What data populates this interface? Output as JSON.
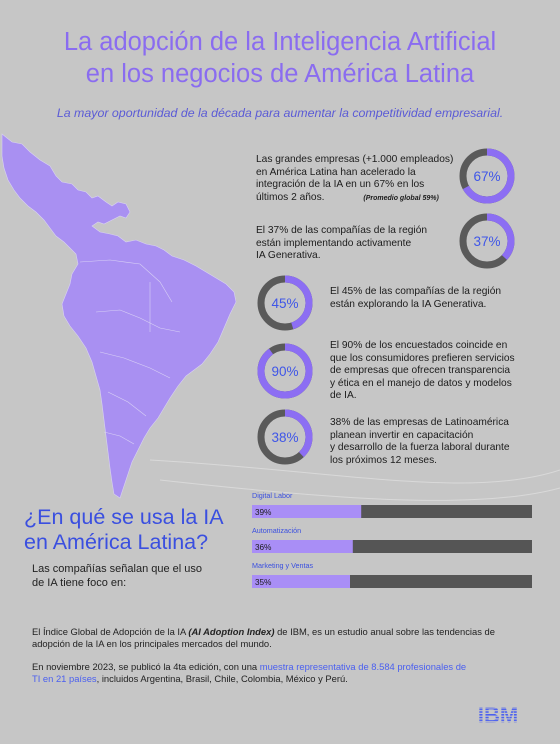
{
  "header": {
    "title_line1": "La adopción de la Inteligencia Artificial",
    "title_line2": "en los negocios de América Latina",
    "subtitle": "La mayor oportunidad de la década para aumentar la competitividad empresarial."
  },
  "stats": [
    {
      "value": 67,
      "label": "67%",
      "lines": [
        "Las grandes empresas (+1.000 empleados)",
        "en América Latina han acelerado la",
        "integración de la IA en un 67% en los"
      ],
      "last_line": "últimos 2 años.",
      "note": "(Promedio global 59%)"
    },
    {
      "value": 37,
      "label": "37%",
      "lines": [
        "El 37% de las compañías de la región",
        "están implementando activamente",
        "IA Generativa."
      ]
    },
    {
      "value": 45,
      "label": "45%",
      "lines": [
        "El 45% de las compañías de la región",
        "están explorando la IA Generativa."
      ]
    },
    {
      "value": 90,
      "label": "90%",
      "lines": [
        "El 90% de los encuestados coincide en",
        "que los consumidores prefieren servicios",
        "de empresas que ofrecen transparencia",
        "y ética en el manejo de datos y modelos",
        "de IA."
      ]
    },
    {
      "value": 38,
      "label": "38%",
      "lines": [
        "38% de las empresas de Latinoamérica",
        "planean invertir en capacitación",
        "y desarrollo de la fuerza laboral durante",
        "los próximos 12 meses."
      ]
    }
  ],
  "section": {
    "title_line1": "¿En qué se usa la IA",
    "title_line2": "en América Latina?",
    "desc_line1": "Las compañías señalan que el uso",
    "desc_line2": "de IA tiene foco en:"
  },
  "chart_data": {
    "type": "bar",
    "orientation": "horizontal",
    "categories": [
      "Digital Labor",
      "Automatización",
      "Marketing y Ventas"
    ],
    "values": [
      39,
      36,
      35
    ],
    "value_labels": [
      "39%",
      "36%",
      "35%"
    ],
    "xlim": [
      0,
      100
    ],
    "colors": {
      "fill": "#a98ef6",
      "track": "#555555"
    }
  },
  "footer": {
    "p1_a": "El Índice Global de Adopción de la IA ",
    "p1_em": "(AI Adoption Index)",
    "p1_b": " de IBM, es un estudio anual sobre las tendencias de",
    "p1_line2": "adopción de la IA en los principales mercados del mundo.",
    "p2_a": "En noviembre 2023, se publicó la 4ta edición, con una ",
    "p2_link": "muestra representativa de 8.584 profesionales de",
    "p2_link2": "TI en 21 países",
    "p2_b": ", incluidos Argentina, Brasil, Chile, Colombia, México y Perú."
  },
  "brand": {
    "logo": "IBM",
    "logo_color": "#4a5ff0"
  },
  "colors": {
    "background": "#c6c6c6",
    "title": "#8a6cf0",
    "map": "#a990f2",
    "donut_fill": "#8c6ef3",
    "donut_track": "#5a5a5a",
    "donut_text": "#3f56e8"
  }
}
